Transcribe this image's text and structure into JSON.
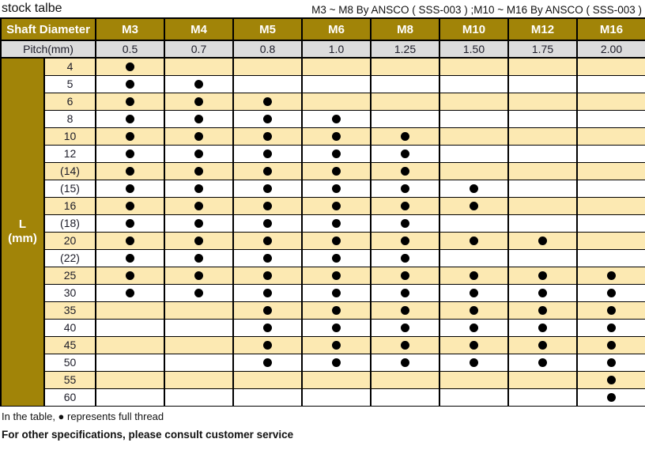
{
  "title": "stock talbe",
  "subtitle": "M3 ~ M8 By ANSCO ( SSS-003 ) ;M10 ~ M16 By ANSCO ( SSS-003 )",
  "table": {
    "corner_header": "Shaft Diameter",
    "pitch_label": "Pitch(mm)",
    "l_header_line1": "L",
    "l_header_line2": "(mm)",
    "columns": [
      "M3",
      "M4",
      "M5",
      "M6",
      "M8",
      "M10",
      "M12",
      "M16"
    ],
    "pitches": [
      "0.5",
      "0.7",
      "0.8",
      "1.0",
      "1.25",
      "1.50",
      "1.75",
      "2.00"
    ],
    "rows": [
      {
        "label": "4",
        "dots": [
          1,
          0,
          0,
          0,
          0,
          0,
          0,
          0
        ]
      },
      {
        "label": "5",
        "dots": [
          1,
          1,
          0,
          0,
          0,
          0,
          0,
          0
        ]
      },
      {
        "label": "6",
        "dots": [
          1,
          1,
          1,
          0,
          0,
          0,
          0,
          0
        ]
      },
      {
        "label": "8",
        "dots": [
          1,
          1,
          1,
          1,
          0,
          0,
          0,
          0
        ]
      },
      {
        "label": "10",
        "dots": [
          1,
          1,
          1,
          1,
          1,
          0,
          0,
          0
        ]
      },
      {
        "label": "12",
        "dots": [
          1,
          1,
          1,
          1,
          1,
          0,
          0,
          0
        ]
      },
      {
        "label": "(14)",
        "dots": [
          1,
          1,
          1,
          1,
          1,
          0,
          0,
          0
        ]
      },
      {
        "label": "(15)",
        "dots": [
          1,
          1,
          1,
          1,
          1,
          1,
          0,
          0
        ]
      },
      {
        "label": "16",
        "dots": [
          1,
          1,
          1,
          1,
          1,
          1,
          0,
          0
        ]
      },
      {
        "label": "(18)",
        "dots": [
          1,
          1,
          1,
          1,
          1,
          0,
          0,
          0
        ]
      },
      {
        "label": "20",
        "dots": [
          1,
          1,
          1,
          1,
          1,
          1,
          1,
          0
        ]
      },
      {
        "label": "(22)",
        "dots": [
          1,
          1,
          1,
          1,
          1,
          0,
          0,
          0
        ]
      },
      {
        "label": "25",
        "dots": [
          1,
          1,
          1,
          1,
          1,
          1,
          1,
          1
        ]
      },
      {
        "label": "30",
        "dots": [
          1,
          1,
          1,
          1,
          1,
          1,
          1,
          1
        ]
      },
      {
        "label": "35",
        "dots": [
          0,
          0,
          1,
          1,
          1,
          1,
          1,
          1
        ]
      },
      {
        "label": "40",
        "dots": [
          0,
          0,
          1,
          1,
          1,
          1,
          1,
          1
        ]
      },
      {
        "label": "45",
        "dots": [
          0,
          0,
          1,
          1,
          1,
          1,
          1,
          1
        ]
      },
      {
        "label": "50",
        "dots": [
          0,
          0,
          1,
          1,
          1,
          1,
          1,
          1
        ]
      },
      {
        "label": "55",
        "dots": [
          0,
          0,
          0,
          0,
          0,
          0,
          0,
          1
        ]
      },
      {
        "label": "60",
        "dots": [
          0,
          0,
          0,
          0,
          0,
          0,
          0,
          1
        ]
      }
    ]
  },
  "footer": {
    "note": "In the table, ● represents full thread",
    "bold_note": "For other specifications, please consult customer service"
  },
  "colors": {
    "header_gold": "#a18408",
    "row_cream": "#fce9b2",
    "pitch_gray": "#dcdcdc",
    "border": "#000000",
    "header_text": "#ffffff"
  }
}
